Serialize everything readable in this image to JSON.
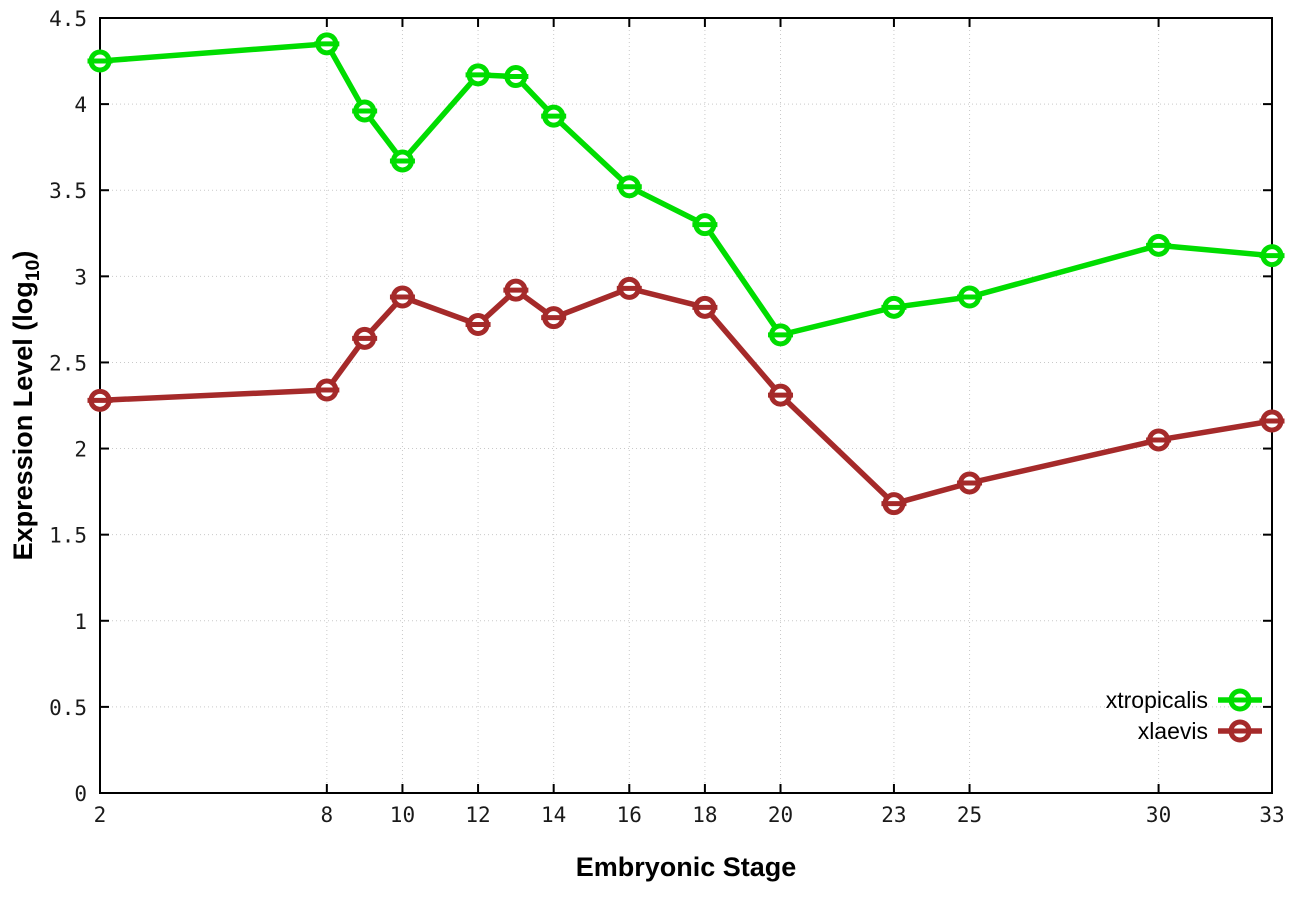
{
  "figure": {
    "background": "#ffffff",
    "border_color": "#000000",
    "grid_color": "#c9c9c9",
    "tick_label_color": "#1a1a1a"
  },
  "chart_data": {
    "type": "line",
    "title": "",
    "xlabel": "Embryonic Stage",
    "ylabel": "Expression Level (log10)",
    "ylabel_parts": {
      "pre": "Expression Level (log",
      "sub": "10",
      "post": ")"
    },
    "x": [
      2,
      8,
      9,
      10,
      12,
      13,
      14,
      16,
      18,
      20,
      23,
      25,
      30,
      33
    ],
    "xlim": [
      2,
      33
    ],
    "ylim": [
      0,
      4.5
    ],
    "x_ticks": [
      2,
      8,
      10,
      12,
      14,
      16,
      18,
      20,
      23,
      25,
      30,
      33
    ],
    "x_tick_labels": [
      "2",
      "8",
      "10",
      "12",
      "14",
      "16",
      "18",
      "20",
      "23",
      "25",
      "30",
      "33"
    ],
    "y_ticks": [
      0,
      0.5,
      1,
      1.5,
      2,
      2.5,
      3,
      3.5,
      4,
      4.5
    ],
    "y_tick_labels": [
      "0",
      "0.5",
      "1",
      "1.5",
      "2",
      "2.5",
      "3",
      "3.5",
      "4",
      "4.5"
    ],
    "grid": true,
    "marker": "open-circle-with-horizontal-dash",
    "legend_position": "bottom-right-inside",
    "series": [
      {
        "name": "xtropicalis",
        "color": "#00dd00",
        "values": [
          4.25,
          4.35,
          3.96,
          3.67,
          4.17,
          4.16,
          3.93,
          3.52,
          3.3,
          2.66,
          2.82,
          2.88,
          3.18,
          3.12
        ]
      },
      {
        "name": "xlaevis",
        "color": "#a52a2a",
        "values": [
          2.28,
          2.34,
          2.64,
          2.88,
          2.72,
          2.92,
          2.76,
          2.93,
          2.82,
          2.31,
          1.68,
          1.8,
          2.05,
          2.16
        ]
      }
    ]
  }
}
